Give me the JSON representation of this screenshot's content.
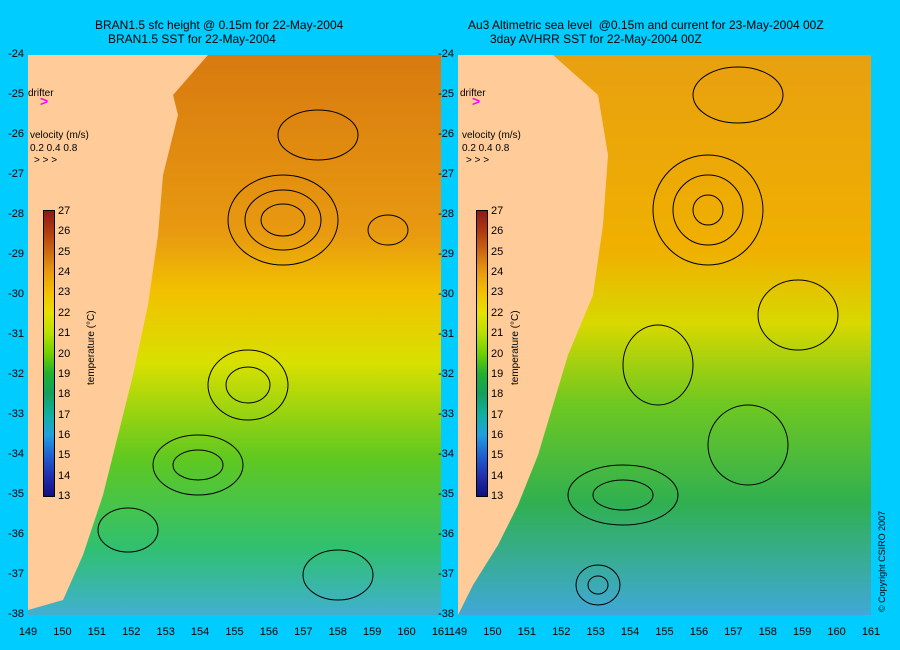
{
  "left_panel": {
    "title_line1": "BRAN1.5 sfc height @ 0.15m for 22-May-2004",
    "title_line2": "BRAN1.5 SST for 22-May-2004"
  },
  "right_panel": {
    "title_line1": "Au3 Altimetric sea level  @0.15m and current for 23-May-2004 00Z",
    "title_line2": "3day AVHRR SST for 22-May-2004 00Z"
  },
  "legend": {
    "drifter_label": "drifter",
    "drifter_symbol": ">",
    "velocity_label": "velocity (m/s)",
    "velocity_values": "0.2 0.4 0.8",
    "velocity_arrows": ">  >  >"
  },
  "colorbar": {
    "title": "temperature (°C)",
    "ticks": [
      "27",
      "26",
      "25",
      "24",
      "23",
      "22",
      "21",
      "20",
      "19",
      "18",
      "17",
      "16",
      "15",
      "14",
      "13"
    ],
    "colors": [
      "#8b1a1a",
      "#b03a10",
      "#cc6a10",
      "#e89a10",
      "#f2c000",
      "#e8e000",
      "#b8e000",
      "#70d000",
      "#20b030",
      "#10a060",
      "#10b0a0",
      "#20a0e0",
      "#2060d0",
      "#2030b0",
      "#101080"
    ]
  },
  "lat_ticks": [
    "-24",
    "-25",
    "-26",
    "-27",
    "-28",
    "-29",
    "-30",
    "-31",
    "-32",
    "-33",
    "-34",
    "-35",
    "-36",
    "-37",
    "-38"
  ],
  "lon_ticks": [
    "149",
    "150",
    "151",
    "152",
    "153",
    "154",
    "155",
    "156",
    "157",
    "158",
    "159",
    "160",
    "161"
  ],
  "copyright": "© Copyright CSIRO 2007",
  "colors": {
    "background": "#00ccff",
    "land": "#ffcc99",
    "drifter": "#ff00ff"
  }
}
